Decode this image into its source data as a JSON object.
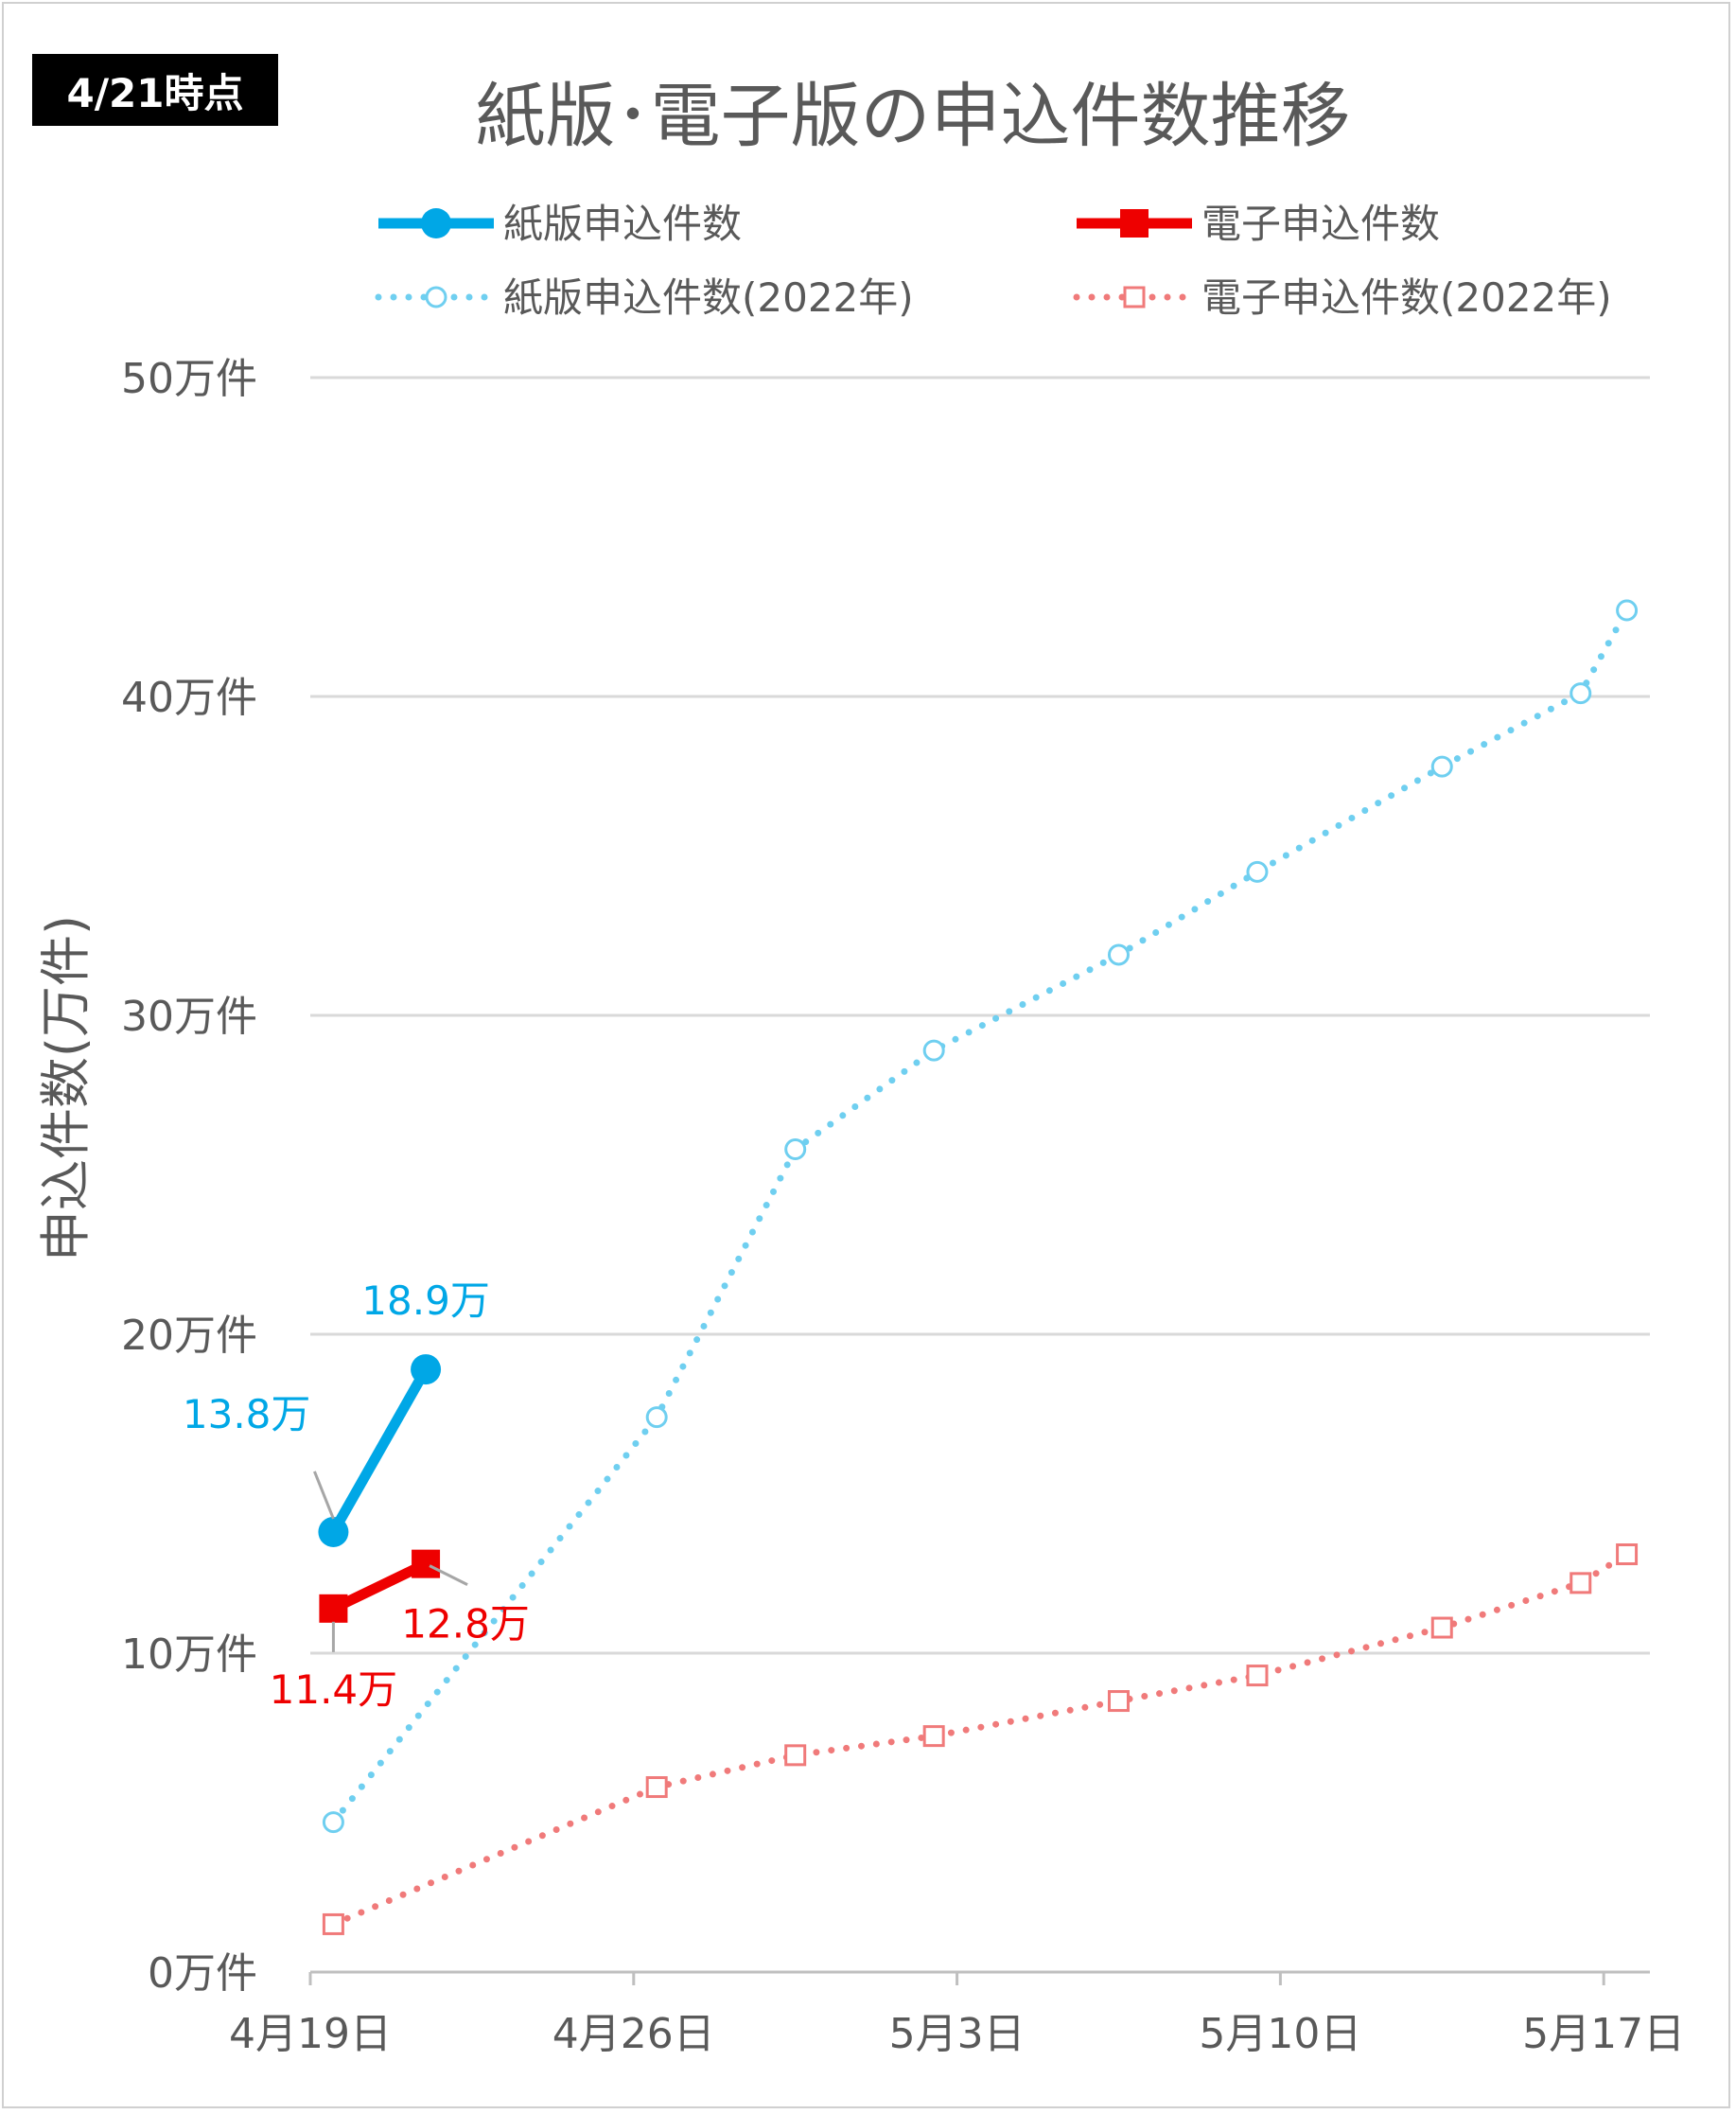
{
  "badge": "4/21時点",
  "chart_data": {
    "type": "line",
    "title": "紙版･電子版の申込件数推移",
    "ylabel": "申込件数(万件)",
    "xlabel": "",
    "ylim": [
      0,
      50
    ],
    "yticks": [
      "0万件",
      "10万件",
      "20万件",
      "30万件",
      "40万件",
      "50万件"
    ],
    "xticks": [
      {
        "day": 0,
        "label": "4月19日"
      },
      {
        "day": 7,
        "label": "4月26日"
      },
      {
        "day": 14,
        "label": "5月3日"
      },
      {
        "day": 21,
        "label": "5月10日"
      },
      {
        "day": 28,
        "label": "5月17日"
      }
    ],
    "x_domain_days": [
      0,
      29
    ],
    "grid": true,
    "legend": "top",
    "series": [
      {
        "name": "紙版申込件数",
        "color": "#00a7e6",
        "style": "solid",
        "marker": "circle",
        "points": [
          {
            "day": 0.5,
            "value": 13.8,
            "label": "13.8万"
          },
          {
            "day": 2.5,
            "value": 18.9,
            "label": "18.9万"
          }
        ]
      },
      {
        "name": "電子申込件数",
        "color": "#ee0000",
        "style": "solid",
        "marker": "square",
        "points": [
          {
            "day": 0.5,
            "value": 11.4,
            "label": "11.4万"
          },
          {
            "day": 2.5,
            "value": 12.8,
            "label": "12.8万"
          }
        ]
      },
      {
        "name": "紙版申込件数(2022年)",
        "color": "#6fcff0",
        "style": "dotted",
        "marker": "circle-open",
        "points": [
          {
            "day": 0.5,
            "value": 4.7
          },
          {
            "day": 7.5,
            "value": 17.4
          },
          {
            "day": 10.5,
            "value": 25.8
          },
          {
            "day": 13.5,
            "value": 28.9
          },
          {
            "day": 17.5,
            "value": 31.9
          },
          {
            "day": 20.5,
            "value": 34.5
          },
          {
            "day": 24.5,
            "value": 37.8
          },
          {
            "day": 27.5,
            "value": 40.1
          },
          {
            "day": 28.5,
            "value": 42.7
          }
        ]
      },
      {
        "name": "電子申込件数(2022年)",
        "color": "#f07a7a",
        "style": "dotted",
        "marker": "square-open",
        "points": [
          {
            "day": 0.5,
            "value": 1.5
          },
          {
            "day": 7.5,
            "value": 5.8
          },
          {
            "day": 10.5,
            "value": 6.8
          },
          {
            "day": 13.5,
            "value": 7.4
          },
          {
            "day": 17.5,
            "value": 8.5
          },
          {
            "day": 20.5,
            "value": 9.3
          },
          {
            "day": 24.5,
            "value": 10.8
          },
          {
            "day": 27.5,
            "value": 12.2
          },
          {
            "day": 28.5,
            "value": 13.1
          }
        ]
      }
    ]
  }
}
